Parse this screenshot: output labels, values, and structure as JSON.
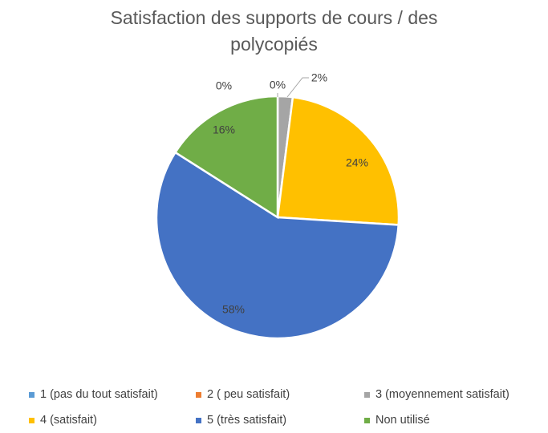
{
  "title_lines": [
    "Satisfaction des supports de cours / des",
    "polycopiés"
  ],
  "chart_data": {
    "type": "pie",
    "title": "Satisfaction des supports de cours / des polycopiés",
    "categories": [
      "1 (pas du tout satisfait)",
      "2 ( peu satisfait)",
      "3 (moyennement satisfait)",
      "4 (satisfait)",
      "5 (très satisfait)",
      "Non utilisé"
    ],
    "values": [
      0,
      0,
      2,
      24,
      58,
      16
    ],
    "labels": [
      "0%",
      "0%",
      "2%",
      "24%",
      "58%",
      "16%"
    ],
    "colors": [
      "#5B9BD5",
      "#ED7D31",
      "#A5A5A5",
      "#FFC000",
      "#4472C4",
      "#70AD47"
    ],
    "legend_position": "bottom"
  }
}
